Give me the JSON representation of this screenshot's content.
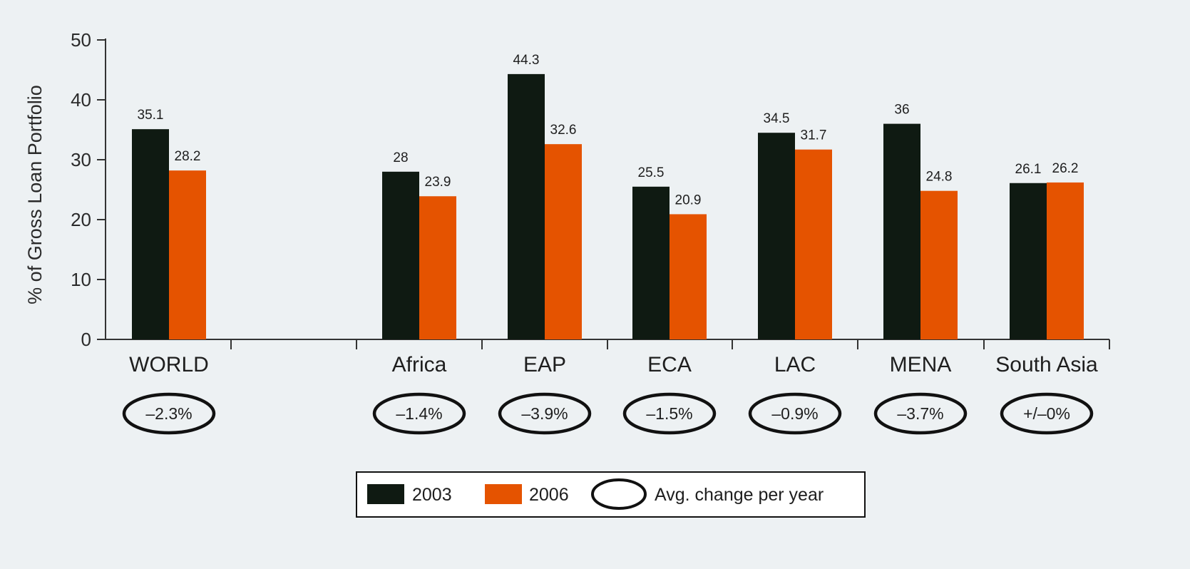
{
  "chart_data": {
    "type": "bar",
    "ylabel": "% of Gross Loan Portfolio",
    "ylim": [
      0,
      50
    ],
    "yticks": [
      0,
      10,
      20,
      30,
      40,
      50
    ],
    "grid": false,
    "categories": [
      "WORLD",
      "Africa",
      "EAP",
      "ECA",
      "LAC",
      "MENA",
      "South Asia"
    ],
    "series": [
      {
        "name": "2003",
        "color": "#0f1a12",
        "values": [
          35.1,
          28.0,
          44.3,
          25.5,
          34.5,
          36.0,
          26.1
        ]
      },
      {
        "name": "2006",
        "color": "#e55300",
        "values": [
          28.2,
          23.9,
          32.6,
          20.9,
          31.7,
          24.8,
          26.2
        ]
      }
    ],
    "avg_change_per_year": [
      "–2.3%",
      "–1.4%",
      "–3.9%",
      "–1.5%",
      "–0.9%",
      "–3.7%",
      "+/–0%"
    ],
    "legend": {
      "position": "bottom-center",
      "items": [
        "2003",
        "2006",
        "Avg. change per year"
      ]
    }
  }
}
